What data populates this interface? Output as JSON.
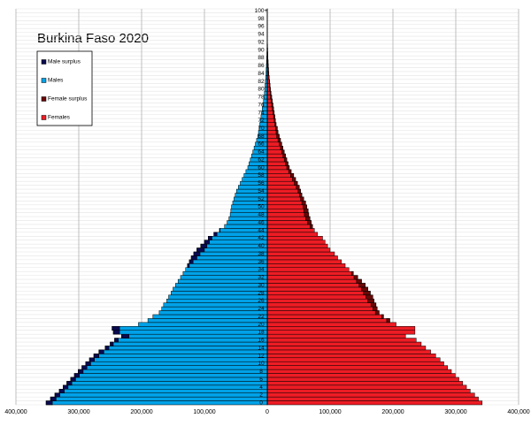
{
  "chart_data": {
    "type": "pyramid",
    "title": "Burkina Faso 2020",
    "categories": [
      "0",
      null,
      "2",
      null,
      "4",
      null,
      "6",
      null,
      "8",
      null,
      "10",
      null,
      "12",
      null,
      "14",
      null,
      "16",
      null,
      "18",
      null,
      "20",
      null,
      "22",
      null,
      "24",
      null,
      "26",
      null,
      "28",
      null,
      "30",
      null,
      "32",
      null,
      "34",
      null,
      "36",
      null,
      "38",
      null,
      "40",
      null,
      "42",
      null,
      "44",
      null,
      "46",
      null,
      "48",
      null,
      "50",
      null,
      "52",
      null,
      "54",
      null,
      "56",
      null,
      "58",
      null,
      "60",
      null,
      "62",
      null,
      "64",
      null,
      "66",
      null,
      "68",
      null,
      "70",
      null,
      "72",
      null,
      "74",
      null,
      "76",
      null,
      "78",
      null,
      "80",
      null,
      "82",
      null,
      "84",
      null,
      "86",
      null,
      "88",
      null,
      "90",
      null,
      "92",
      null,
      "94",
      null,
      "96",
      null,
      "98",
      null,
      "100+"
    ],
    "series": [
      {
        "name": "Males",
        "color": "#00a2e8",
        "surplus_name": "Male surplus",
        "surplus_color": "#0a0a50",
        "values": [
          352000,
          345000,
          338000,
          331000,
          325000,
          319000,
          313000,
          307000,
          301000,
          295000,
          289000,
          283000,
          276000,
          268000,
          258000,
          250000,
          243000,
          232000,
          245000,
          247000,
          205000,
          190000,
          182000,
          172000,
          168000,
          165000,
          160000,
          157000,
          153000,
          150000,
          146000,
          142000,
          138000,
          134000,
          130000,
          127000,
          124000,
          121000,
          117000,
          112000,
          106000,
          100000,
          94000,
          85000,
          76000,
          68000,
          64000,
          61000,
          59000,
          58000,
          57000,
          55000,
          53000,
          51000,
          49000,
          46000,
          43000,
          40000,
          37000,
          34000,
          31000,
          29000,
          27000,
          25000,
          23000,
          21000,
          19000,
          17000,
          15000,
          14000,
          13000,
          12000,
          11000,
          10000,
          9000,
          8000,
          7000,
          6000,
          5000,
          4500,
          4000,
          3500,
          3000,
          2500,
          2000,
          1700,
          1400,
          1100,
          900,
          700,
          500,
          400,
          300,
          220,
          160,
          120,
          90,
          60,
          40,
          30,
          50
        ]
      },
      {
        "name": "Females",
        "color": "#ed1c24",
        "surplus_name": "Female surplus",
        "surplus_color": "#6a0808",
        "values": [
          342000,
          336000,
          330000,
          323000,
          317000,
          311000,
          305000,
          299000,
          293000,
          287000,
          281000,
          275000,
          268000,
          260000,
          252000,
          245000,
          237000,
          220000,
          235000,
          235000,
          205000,
          195000,
          185000,
          178000,
          175000,
          173000,
          170000,
          168000,
          164000,
          160000,
          156000,
          150000,
          144000,
          137000,
          130000,
          124000,
          118000,
          112000,
          107000,
          100000,
          96000,
          92000,
          88000,
          80000,
          75000,
          72000,
          70000,
          68000,
          66000,
          65000,
          63000,
          61000,
          58000,
          55000,
          53000,
          51000,
          48000,
          45000,
          42000,
          38000,
          35000,
          33000,
          31000,
          29000,
          27000,
          25000,
          23000,
          21000,
          19000,
          17000,
          16000,
          14000,
          13000,
          12000,
          11000,
          10000,
          9000,
          8000,
          7000,
          6000,
          5000,
          4300,
          3600,
          3000,
          2500,
          2000,
          1600,
          1300,
          1000,
          800,
          600,
          450,
          350,
          250,
          200,
          150,
          100,
          80,
          60,
          40,
          100
        ]
      }
    ],
    "xlim": [
      -400000,
      400000
    ],
    "xticks": [
      {
        "value": -400000,
        "label": "400,000"
      },
      {
        "value": -300000,
        "label": "300,000"
      },
      {
        "value": -200000,
        "label": "200,000"
      },
      {
        "value": -100000,
        "label": "100,000"
      },
      0,
      {
        "value": 100000,
        "label": "100,000"
      },
      {
        "value": 200000,
        "label": "200,000"
      },
      {
        "value": 300000,
        "label": "300,000"
      },
      {
        "value": 400000,
        "label": "400,000"
      }
    ],
    "grid": true
  }
}
